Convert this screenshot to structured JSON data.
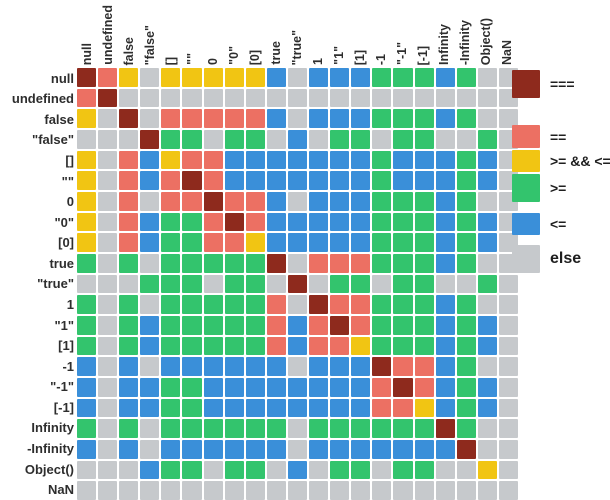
{
  "chart_data": {
    "type": "heatmap",
    "title": "",
    "categories": [
      "null",
      "undefined",
      "false",
      "\"false\"",
      "[]",
      "\"\"",
      "0",
      "\"0\"",
      "[0]",
      "true",
      "\"true\"",
      "1",
      "\"1\"",
      "[1]",
      "-1",
      "\"-1\"",
      "[-1]",
      "Infinity",
      "-Infinity",
      "Object()",
      "NaN"
    ],
    "x_categories": [
      "null",
      "undefined",
      "false",
      "\"false\"",
      "[]",
      "\"\"",
      "0",
      "\"0\"",
      "[0]",
      "true",
      "\"true\"",
      "1",
      "\"1\"",
      "[1]",
      "-1",
      "\"-1\"",
      "[-1]",
      "Infinity",
      "-Infinity",
      "Object()",
      "NaN"
    ],
    "y_categories": [
      "null",
      "undefined",
      "false",
      "\"false\"",
      "[]",
      "\"\"",
      "0",
      "\"0\"",
      "[0]",
      "true",
      "\"true\"",
      "1",
      "\"1\"",
      "[1]",
      "-1",
      "\"-1\"",
      "[-1]",
      "Infinity",
      "-Infinity",
      "Object()",
      "NaN"
    ],
    "colors": {
      "R": "#8e2a1d",
      "S": "#ec7063",
      "Y": "#f1c513",
      "G": "#33c46d",
      "B": "#3a8fd9",
      "E": "#c6c9cc"
    },
    "matrix": [
      "RSYEYYYYYBEBBBGGGBGEE",
      "SREEEEEEEEEEEEEEEEEEE",
      "YERESSSSSBEBBBGGGBGEE",
      "EEERGGEGGEBEGGEGGEEGE",
      "YESBYSSBBBBBBBGBBBGBE",
      "YESBSRSBBBBBBBGBBBGBE",
      "YESESSRSSBEBBBGGGBGEE",
      "YESBGGSRSBBBBBGGGBGBE",
      "YESBGGSSYBBBBBGGGBGBE",
      "GEGEGGGGGRESSSGGGBGEE",
      "EEEGGGEGGEREGGEGGEEGE",
      "GEGEGGGGGSERSSGGGBGEE",
      "GEGBGGGGGSBSRSGGGBGBE",
      "GEGBGGGGGSBSSYGGGBGBE",
      "BEBEBBBBBBEBBBRSSBGEE",
      "BEBBGGBBBBBBBBSRSBGBE",
      "BEBBGGBBBBBBBBSSYBGBE",
      "GEGEGGGGGGEGGGGGGRGEE",
      "BEBEBBBBBBEBBBBBBBREE",
      "EEEBGGEGGEBEGGEGGEEYE",
      "EEEEEEEEEEEEEEEEEEEEE"
    ],
    "legend": [
      {
        "label": "===",
        "key": "R"
      },
      {
        "label": "==",
        "key": "S"
      },
      {
        "label": ">= && <=",
        "key": "Y"
      },
      {
        "label": ">=",
        "key": "G"
      },
      {
        "label": "<=",
        "key": "B"
      },
      {
        "label": "else",
        "key": "E"
      }
    ],
    "legend_position": "right",
    "grid": true
  }
}
